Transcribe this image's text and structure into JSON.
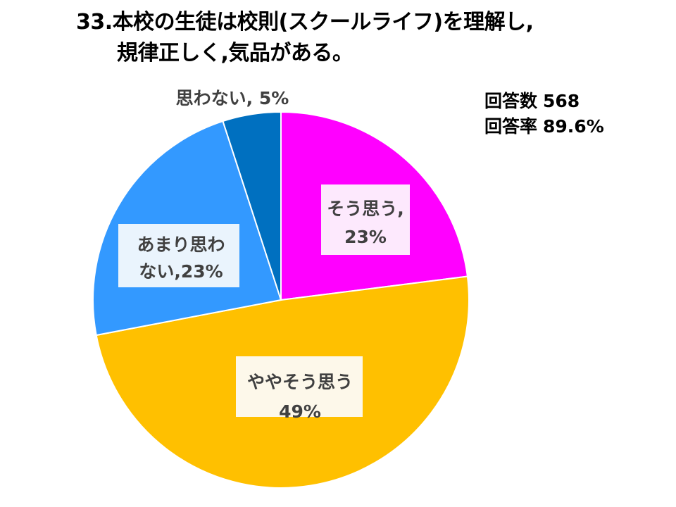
{
  "title": {
    "line1": "33.本校の生徒は校則(スクールライフ)を理解し,",
    "line2": "規律正しく,気品がある。"
  },
  "stats": {
    "responses_label": "回答数",
    "responses_value": "568",
    "rate_label": "回答率",
    "rate_value": "89.6%"
  },
  "colors": {
    "slice_1": "#ff00ff",
    "slice_2": "#ffc000",
    "slice_3": "#3399ff",
    "slice_4": "#0070c0",
    "label_box_1": "#fde9fd",
    "label_box_2": "#fdf8ea",
    "label_box_3": "#eaf4fd",
    "text": "#404040",
    "border": "#ffffff"
  },
  "chart_data": {
    "type": "pie",
    "title": "33.本校の生徒は校則(スクールライフ)を理解し,規律正しく,気品がある。",
    "categories": [
      "そう思う",
      "ややそう思う",
      "あまり思わない",
      "思わない"
    ],
    "values": [
      23,
      49,
      23,
      5
    ],
    "unit": "%",
    "labels": [
      {
        "line1": "そう思う,",
        "line2": "23%"
      },
      {
        "line1": "ややそう思う",
        "line2": "49%"
      },
      {
        "line1": "あまり思わ",
        "line2": "ない,23%"
      },
      {
        "line1": "思わない, 5%",
        "line2": ""
      }
    ]
  }
}
